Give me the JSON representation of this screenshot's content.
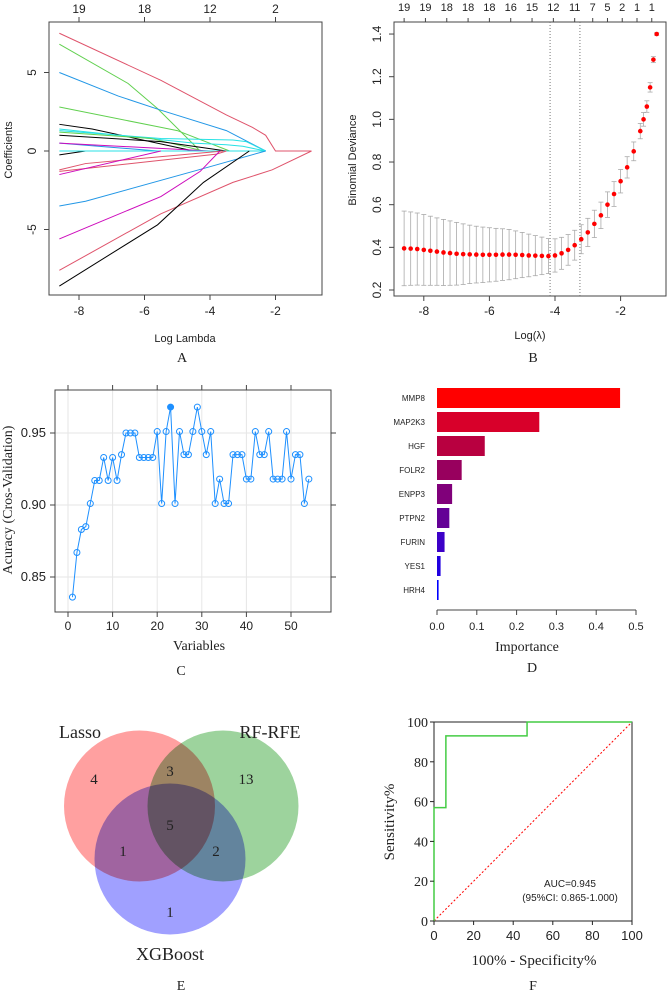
{
  "chart_data": [
    {
      "panel": "A",
      "type": "line",
      "xlabel": "Log Lambda",
      "ylabel": "Coefficients",
      "xticks": [
        -8,
        -6,
        -4,
        -2
      ],
      "yticks": [
        -5,
        0,
        5
      ],
      "top_ticks": [
        "19",
        "18",
        "12",
        "2"
      ],
      "xlim": [
        -8.9,
        -0.6
      ],
      "ylim": [
        -9,
        8.3
      ],
      "series": [
        {
          "color": "#df536b",
          "points": [
            [
              -8.6,
              7.5
            ],
            [
              -5.5,
              4.5
            ],
            [
              -3.5,
              2.3
            ],
            [
              -2.7,
              1.5
            ],
            [
              -2.3,
              1.0
            ],
            [
              -2.0,
              0
            ],
            [
              -0.9,
              0
            ]
          ]
        },
        {
          "color": "#61d04f",
          "points": [
            [
              -8.6,
              6.8
            ],
            [
              -6.5,
              4.3
            ],
            [
              -5.6,
              2.7
            ],
            [
              -4.3,
              0
            ]
          ]
        },
        {
          "color": "#2297e6",
          "points": [
            [
              -8.6,
              5.0
            ],
            [
              -6.8,
              3.5
            ],
            [
              -5.5,
              2.6
            ],
            [
              -3.5,
              1.3
            ],
            [
              -2.3,
              0
            ]
          ]
        },
        {
          "color": "#61d04f",
          "points": [
            [
              -8.6,
              2.8
            ],
            [
              -5.0,
              1.3
            ],
            [
              -3.4,
              0
            ]
          ]
        },
        {
          "color": "#000000",
          "points": [
            [
              -8.6,
              1.7
            ],
            [
              -7.6,
              1.4
            ],
            [
              -4.5,
              0
            ]
          ]
        },
        {
          "color": "#28e2e5",
          "points": [
            [
              -8.6,
              1.4
            ],
            [
              -4.5,
              0.5
            ],
            [
              -3.5,
              0.4
            ],
            [
              -3.0,
              0.3
            ],
            [
              -2.3,
              0
            ]
          ]
        },
        {
          "color": "#28e2e5",
          "points": [
            [
              -8.6,
              1.3
            ],
            [
              -5.5,
              0.8
            ],
            [
              -3.3,
              0.7
            ],
            [
              -2.9,
              0.6
            ],
            [
              -2.3,
              0
            ]
          ]
        },
        {
          "color": "#61d04f",
          "points": [
            [
              -8.6,
              1.2
            ],
            [
              -5.8,
              0.8
            ],
            [
              -4.2,
              0
            ]
          ]
        },
        {
          "color": "#000000",
          "points": [
            [
              -8.6,
              1.0
            ],
            [
              -5.5,
              0.6
            ],
            [
              -3.5,
              0
            ]
          ]
        },
        {
          "color": "#2297e6",
          "points": [
            [
              -8.6,
              0.5
            ],
            [
              -5.6,
              0
            ]
          ]
        },
        {
          "color": "#cd0bbc",
          "points": [
            [
              -8.6,
              0.5
            ],
            [
              -4.0,
              0
            ]
          ]
        },
        {
          "color": "#000000",
          "points": [
            [
              -8.6,
              -0.25
            ],
            [
              -7.8,
              0
            ]
          ]
        },
        {
          "color": "#28e2e5",
          "points": [
            [
              -8.6,
              0
            ],
            [
              -2.3,
              0
            ]
          ]
        },
        {
          "color": "#df536b",
          "points": [
            [
              -8.6,
              -1.2
            ],
            [
              -7.8,
              -0.8
            ],
            [
              -3.6,
              0
            ]
          ]
        },
        {
          "color": "#df536b",
          "points": [
            [
              -8.6,
              -1.3
            ],
            [
              -3.8,
              -0.2
            ],
            [
              -3.5,
              0
            ]
          ]
        },
        {
          "color": "#cd0bbc",
          "points": [
            [
              -8.6,
              -1.5
            ],
            [
              -5.5,
              0
            ]
          ]
        },
        {
          "color": "#2297e6",
          "points": [
            [
              -8.6,
              -3.5
            ],
            [
              -7.8,
              -3.2
            ],
            [
              -4.0,
              -1.0
            ],
            [
              -2.3,
              0
            ]
          ]
        },
        {
          "color": "#cd0bbc",
          "points": [
            [
              -8.6,
              -5.6
            ],
            [
              -7.8,
              -4.9
            ],
            [
              -5.5,
              -2.9
            ],
            [
              -4.3,
              -1.3
            ],
            [
              -3.7,
              0
            ]
          ]
        },
        {
          "color": "#df536b",
          "points": [
            [
              -8.6,
              -7.6
            ],
            [
              -5.5,
              -4.0
            ],
            [
              -3.3,
              -2.0
            ],
            [
              -2.1,
              -1.2
            ],
            [
              -0.9,
              0
            ]
          ]
        },
        {
          "color": "#000000",
          "points": [
            [
              -8.6,
              -8.6
            ],
            [
              -5.6,
              -4.7
            ],
            [
              -4.2,
              -2.0
            ],
            [
              -2.8,
              0
            ]
          ]
        }
      ]
    },
    {
      "panel": "B",
      "type": "scatter",
      "xlabel": "Log(λ)",
      "ylabel": "Binomial Deviance",
      "xticks": [
        -8,
        -6,
        -4,
        -2
      ],
      "yticks": [
        0.2,
        0.4,
        0.6,
        0.8,
        1.0,
        1.2,
        1.4
      ],
      "ytick_labels": [
        "0.2",
        "0.4",
        "0.6",
        "0.8",
        "1.0",
        "1.2",
        "1.4"
      ],
      "top_ticks": [
        [
          "19",
          -8.6
        ],
        [
          "19",
          -7.95
        ],
        [
          "18",
          -7.3
        ],
        [
          "18",
          -6.65
        ],
        [
          "18",
          -6.0
        ],
        [
          "16",
          -5.35
        ],
        [
          "15",
          -4.7
        ],
        [
          "12",
          -4.05
        ],
        [
          "11",
          -3.4
        ],
        [
          "7",
          -2.85
        ],
        [
          "5",
          -2.4
        ],
        [
          "2",
          -1.95
        ],
        [
          "1",
          -1.5
        ],
        [
          "1",
          -1.05
        ]
      ],
      "vlines": [
        -4.15,
        -3.24
      ],
      "color": "#ff0000",
      "points": [
        [
          -8.6,
          0.395,
          0.175
        ],
        [
          -8.4,
          0.394,
          0.172
        ],
        [
          -8.2,
          0.392,
          0.169
        ],
        [
          -8.0,
          0.388,
          0.166
        ],
        [
          -7.8,
          0.384,
          0.162
        ],
        [
          -7.6,
          0.38,
          0.158
        ],
        [
          -7.4,
          0.376,
          0.155
        ],
        [
          -7.2,
          0.373,
          0.151
        ],
        [
          -7.0,
          0.37,
          0.147
        ],
        [
          -6.8,
          0.368,
          0.142
        ],
        [
          -6.6,
          0.367,
          0.137
        ],
        [
          -6.4,
          0.366,
          0.133
        ],
        [
          -6.2,
          0.365,
          0.13
        ],
        [
          -6.0,
          0.365,
          0.127
        ],
        [
          -5.8,
          0.365,
          0.124
        ],
        [
          -5.6,
          0.366,
          0.121
        ],
        [
          -5.4,
          0.366,
          0.118
        ],
        [
          -5.2,
          0.365,
          0.112
        ],
        [
          -5.0,
          0.364,
          0.106
        ],
        [
          -4.8,
          0.362,
          0.1
        ],
        [
          -4.6,
          0.361,
          0.094
        ],
        [
          -4.4,
          0.36,
          0.088
        ],
        [
          -4.2,
          0.359,
          0.082
        ],
        [
          -4.0,
          0.362,
          0.078
        ],
        [
          -3.8,
          0.372,
          0.075
        ],
        [
          -3.6,
          0.388,
          0.072
        ],
        [
          -3.4,
          0.41,
          0.07
        ],
        [
          -3.2,
          0.438,
          0.068
        ],
        [
          -3.0,
          0.47,
          0.066
        ],
        [
          -2.8,
          0.51,
          0.064
        ],
        [
          -2.6,
          0.55,
          0.062
        ],
        [
          -2.4,
          0.6,
          0.06
        ],
        [
          -2.2,
          0.65,
          0.058
        ],
        [
          -2.0,
          0.71,
          0.055
        ],
        [
          -1.8,
          0.775,
          0.05
        ],
        [
          -1.6,
          0.85,
          0.044
        ],
        [
          -1.4,
          0.945,
          0.036
        ],
        [
          -1.3,
          1.0,
          0.032
        ],
        [
          -1.2,
          1.06,
          0.027
        ],
        [
          -1.1,
          1.15,
          0.022
        ],
        [
          -1.0,
          1.28,
          0.014
        ],
        [
          -0.9,
          1.4,
          0.006
        ]
      ]
    },
    {
      "panel": "C",
      "type": "line",
      "xlabel": "Variables",
      "ylabel": "Acuracy (Cros-Validation)",
      "xticks": [
        0,
        10,
        20,
        30,
        40,
        50
      ],
      "yticks": [
        0.85,
        0.9,
        0.95
      ],
      "ytick_labels": [
        "0.85",
        "0.90",
        "0.95"
      ],
      "color": "#1e90ff",
      "best_index": 23,
      "x": [
        1,
        2,
        3,
        4,
        5,
        6,
        7,
        8,
        9,
        10,
        11,
        12,
        13,
        14,
        15,
        16,
        17,
        18,
        19,
        20,
        21,
        22,
        23,
        24,
        25,
        26,
        27,
        28,
        29,
        30,
        31,
        32,
        33,
        34,
        35,
        36,
        37,
        38,
        39,
        40,
        41,
        42,
        43,
        44,
        45,
        46,
        47,
        48,
        49,
        50,
        51,
        52,
        53,
        54
      ],
      "y": [
        0.836,
        0.867,
        0.883,
        0.885,
        0.901,
        0.917,
        0.917,
        0.933,
        0.917,
        0.933,
        0.917,
        0.935,
        0.95,
        0.95,
        0.95,
        0.933,
        0.933,
        0.933,
        0.933,
        0.951,
        0.901,
        0.951,
        0.968,
        0.901,
        0.951,
        0.935,
        0.935,
        0.951,
        0.968,
        0.951,
        0.935,
        0.951,
        0.901,
        0.918,
        0.901,
        0.901,
        0.935,
        0.935,
        0.935,
        0.918,
        0.918,
        0.951,
        0.935,
        0.935,
        0.951,
        0.918,
        0.918,
        0.918,
        0.951,
        0.918,
        0.935,
        0.935,
        0.901,
        0.918
      ]
    },
    {
      "panel": "D",
      "type": "bar",
      "xlabel": "Importance",
      "xticks": [
        0,
        0.1,
        0.2,
        0.3,
        0.4,
        0.5
      ],
      "xtick_labels": [
        "0.0",
        "0.1",
        "0.2",
        "0.3",
        "0.4",
        "0.5"
      ],
      "categories": [
        "MMP8",
        "MAP2K3",
        "HGF",
        "FOLR2",
        "ENPP3",
        "PTPN2",
        "FURIN",
        "YES1",
        "HRH4"
      ],
      "values": [
        0.46,
        0.257,
        0.12,
        0.062,
        0.038,
        0.031,
        0.019,
        0.009,
        0.004
      ],
      "colors": [
        "#ff0000",
        "#d8002a",
        "#b80040",
        "#98005e",
        "#80007a",
        "#640096",
        "#3c00c8",
        "#2000e0",
        "#0000ff"
      ]
    },
    {
      "panel": "E",
      "type": "venn",
      "sets": [
        {
          "name": "Lasso",
          "color": "#ff8080"
        },
        {
          "name": "RF-RFE",
          "color": "#7cc47c"
        },
        {
          "name": "XGBoost",
          "color": "#8080ff"
        }
      ],
      "regions": {
        "lasso_only": "4",
        "rfrfe_only": "13",
        "xgboost_only": "1",
        "lasso_rfrfe": "3",
        "lasso_xgboost": "1",
        "rfrfe_xgboost": "2",
        "all": "5"
      }
    },
    {
      "panel": "F",
      "type": "line",
      "xlabel": "100% - Specificity%",
      "ylabel": "Sensitivity%",
      "xticks": [
        0,
        20,
        40,
        60,
        80,
        100
      ],
      "yticks": [
        0,
        20,
        40,
        60,
        80,
        100
      ],
      "roc": [
        [
          0,
          0
        ],
        [
          0,
          57
        ],
        [
          6,
          57
        ],
        [
          6,
          93
        ],
        [
          47,
          93
        ],
        [
          47,
          100
        ],
        [
          100,
          100
        ]
      ],
      "roc_color": "#44cc44",
      "ref_color": "#ff0000",
      "auc_text": "AUC=0.945",
      "ci_text": "(95%CI: 0.865-1.000)"
    }
  ],
  "panel_labels": [
    "A",
    "B",
    "C",
    "D",
    "E",
    "F"
  ]
}
